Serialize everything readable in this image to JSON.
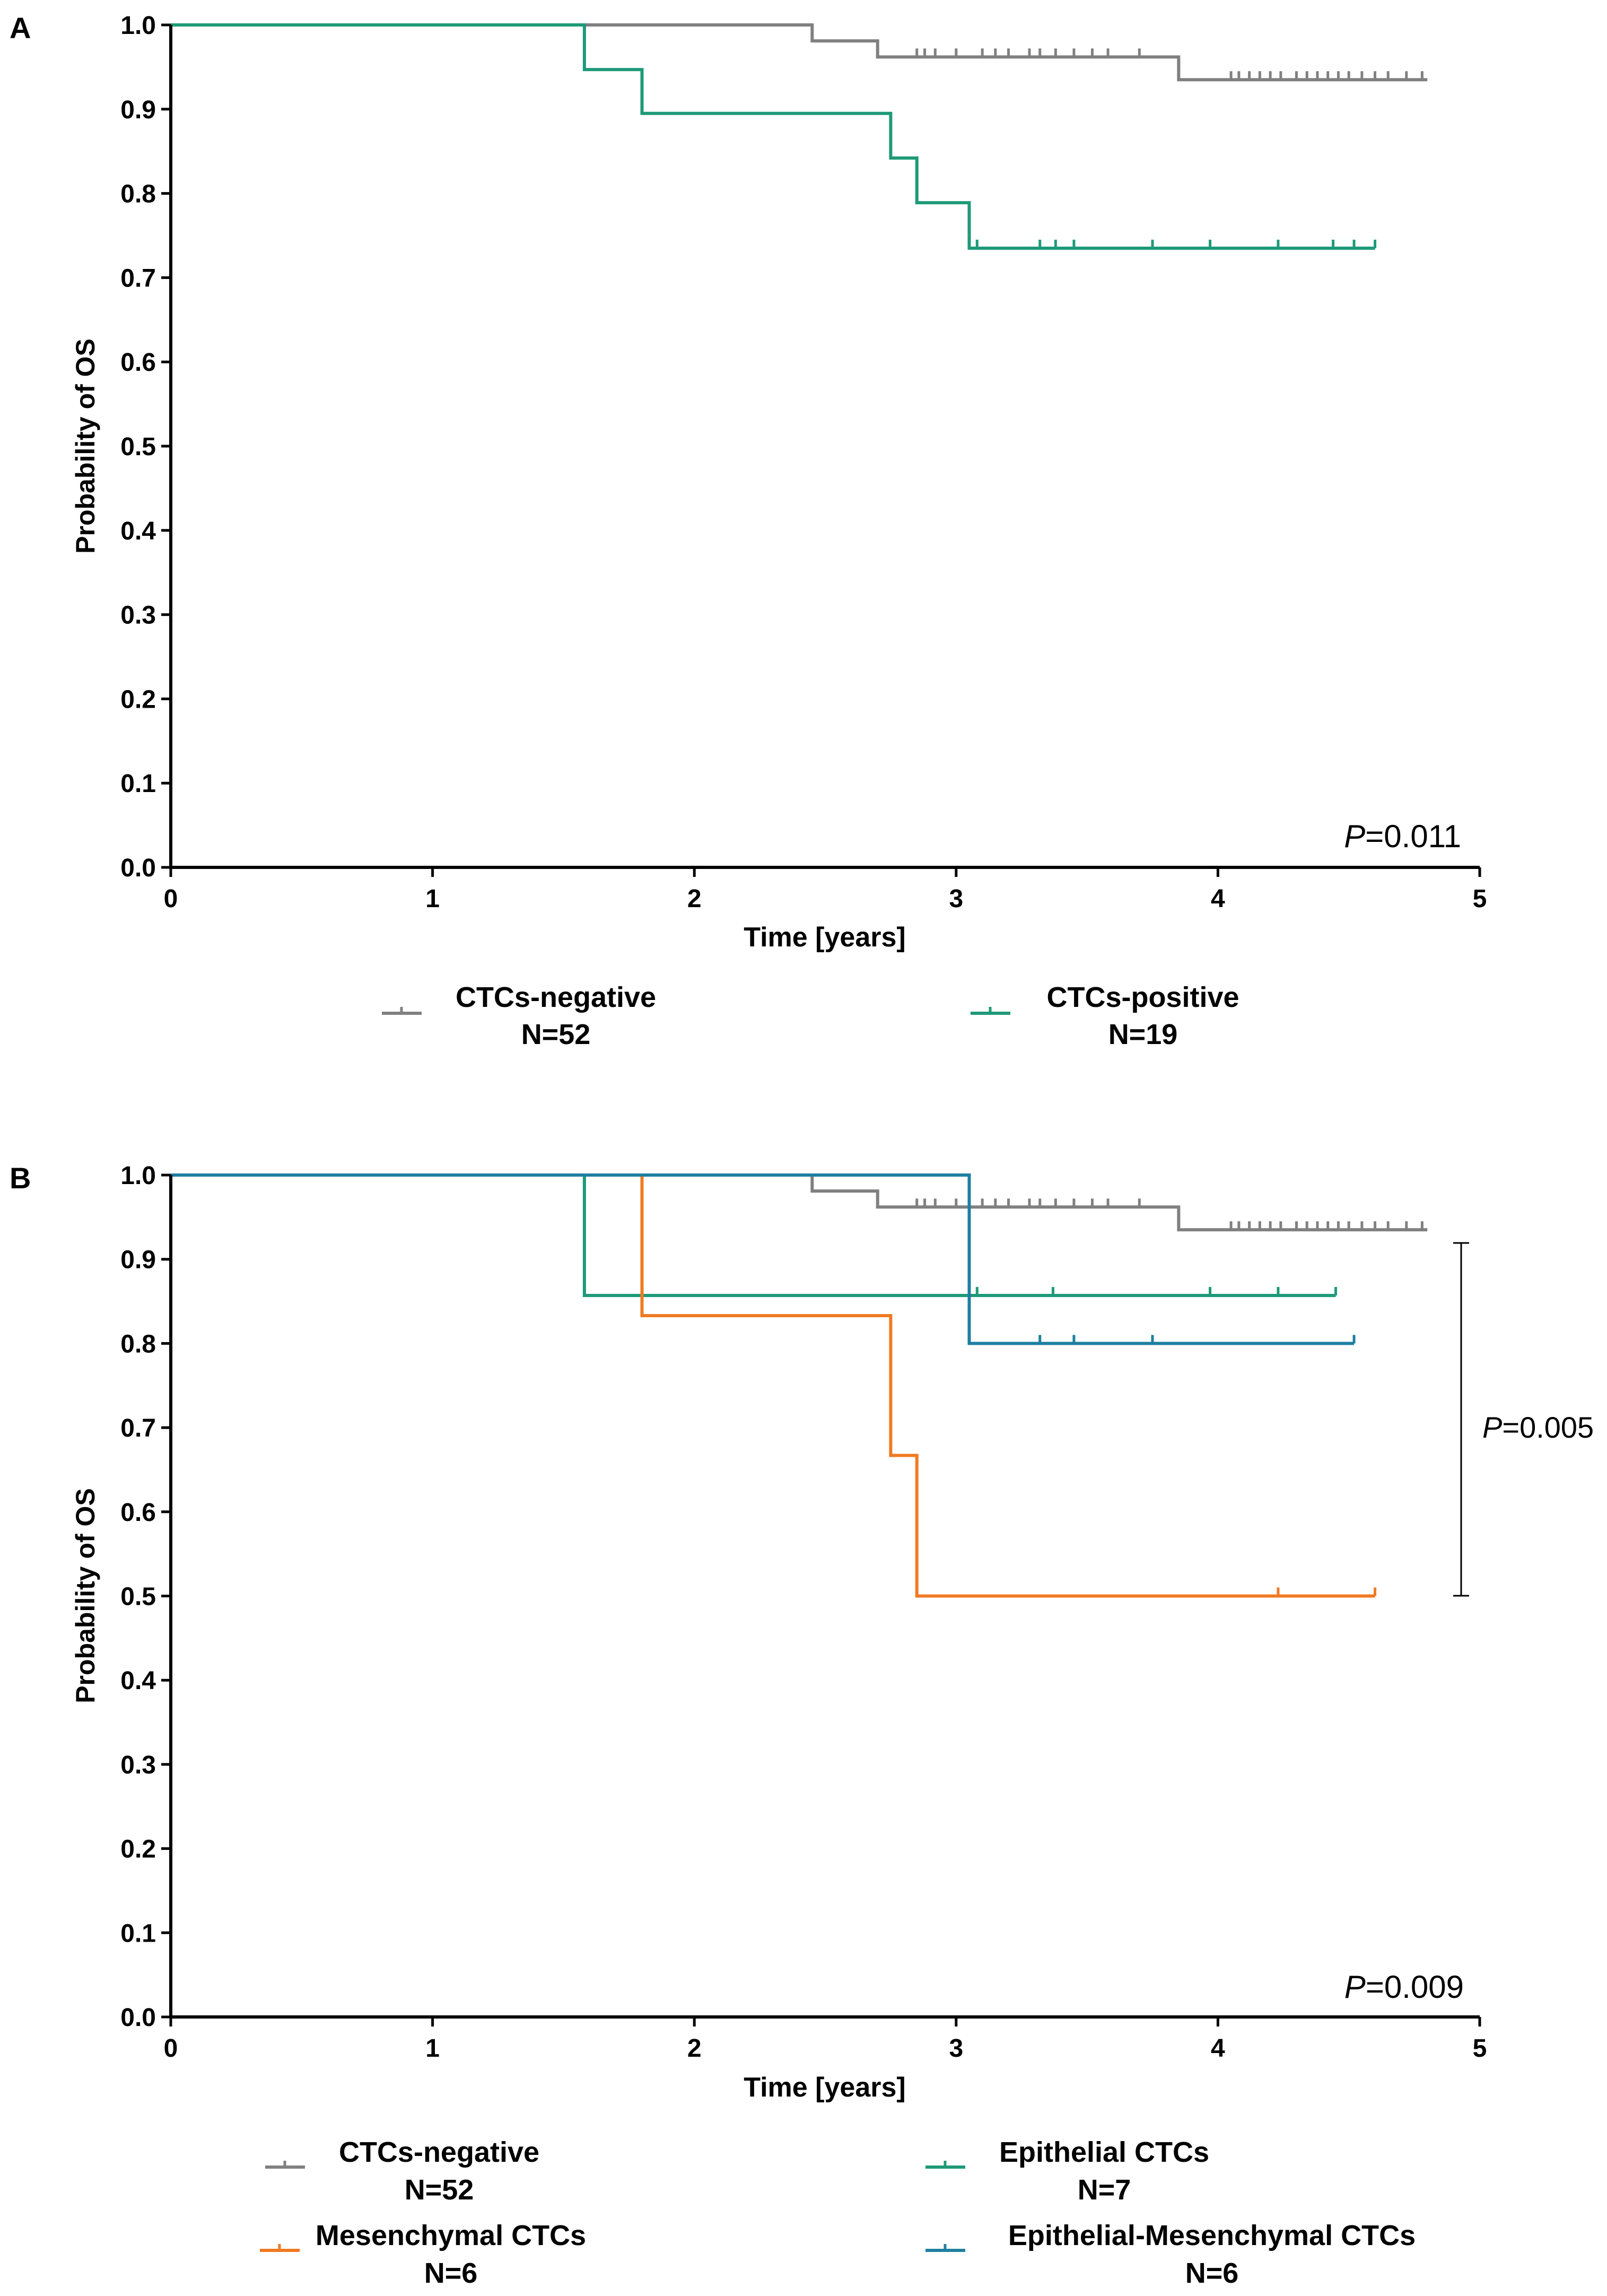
{
  "colors": {
    "negative": "#808080",
    "positive": "#1e9a78",
    "mesenchymal": "#f07a22",
    "epithelial": "#1e9a78",
    "epi_mes": "#1f7fa0",
    "axis": "#000000"
  },
  "chart_data": [
    {
      "panel_label": "A",
      "type": "line",
      "subtype": "kaplan-meier",
      "title": "",
      "xlabel": "Time [years]",
      "ylabel": "Probability of OS",
      "xlim": [
        0,
        5
      ],
      "ylim": [
        0,
        1.0
      ],
      "x_ticks": [
        "0",
        "1",
        "2",
        "3",
        "4",
        "5"
      ],
      "y_ticks": [
        "0.0",
        "0.1",
        "0.2",
        "0.3",
        "0.4",
        "0.5",
        "0.6",
        "0.7",
        "0.8",
        "0.9",
        "1.0"
      ],
      "pvalue": {
        "prefix": "P",
        "value": "=0.011"
      },
      "series": [
        {
          "name": "CTCs-negative",
          "n_label": "N=52",
          "color_key": "negative",
          "steps": [
            [
              0,
              1.0
            ],
            [
              2.45,
              0.981
            ],
            [
              2.7,
              0.962
            ],
            [
              3.85,
              0.935
            ]
          ],
          "x_end": 4.8,
          "censor_x": [
            2.85,
            2.88,
            2.92,
            3.0,
            3.1,
            3.15,
            3.2,
            3.28,
            3.32,
            3.38,
            3.45,
            3.52,
            3.58,
            3.7,
            4.05,
            4.08,
            4.12,
            4.16,
            4.2,
            4.24,
            4.3,
            4.34,
            4.38,
            4.42,
            4.46,
            4.5,
            4.55,
            4.6,
            4.65,
            4.72,
            4.78
          ]
        },
        {
          "name": "CTCs-positive",
          "n_label": "N=19",
          "color_key": "positive",
          "steps": [
            [
              0,
              1.0
            ],
            [
              1.58,
              0.947
            ],
            [
              1.8,
              0.895
            ],
            [
              2.75,
              0.842
            ],
            [
              2.85,
              0.789
            ],
            [
              3.05,
              0.735
            ]
          ],
          "x_end": 4.6,
          "censor_x": [
            3.05,
            3.08,
            3.32,
            3.38,
            3.45,
            3.75,
            3.97,
            4.23,
            4.44,
            4.52,
            4.6
          ]
        }
      ],
      "legend": {
        "position": "bottom"
      }
    },
    {
      "panel_label": "B",
      "type": "line",
      "subtype": "kaplan-meier",
      "title": "",
      "xlabel": "Time [years]",
      "ylabel": "Probability of OS",
      "xlim": [
        0,
        5
      ],
      "ylim": [
        0,
        1.0
      ],
      "x_ticks": [
        "0",
        "1",
        "2",
        "3",
        "4",
        "5"
      ],
      "y_ticks": [
        "0.0",
        "0.1",
        "0.2",
        "0.3",
        "0.4",
        "0.5",
        "0.6",
        "0.7",
        "0.8",
        "0.9",
        "1.0"
      ],
      "pvalue": {
        "prefix": "P",
        "value": "=0.009"
      },
      "bracket": {
        "y_top": 0.92,
        "y_bottom": 0.5,
        "x": 4.93,
        "label_prefix": "P",
        "label_value": "=0.005"
      },
      "series": [
        {
          "name": "CTCs-negative",
          "n_label": "N=52",
          "color_key": "negative",
          "steps": [
            [
              0,
              1.0
            ],
            [
              2.45,
              0.981
            ],
            [
              2.7,
              0.962
            ],
            [
              3.85,
              0.935
            ]
          ],
          "x_end": 4.8,
          "censor_x": [
            2.85,
            2.88,
            2.92,
            3.0,
            3.1,
            3.15,
            3.2,
            3.28,
            3.32,
            3.38,
            3.45,
            3.52,
            3.58,
            3.7,
            4.05,
            4.08,
            4.12,
            4.16,
            4.2,
            4.24,
            4.3,
            4.34,
            4.38,
            4.42,
            4.46,
            4.5,
            4.55,
            4.6,
            4.65,
            4.72,
            4.78
          ]
        },
        {
          "name": "Epithelial CTCs",
          "n_label": "N=7",
          "color_key": "epithelial",
          "steps": [
            [
              0,
              1.0
            ],
            [
              1.58,
              0.857
            ]
          ],
          "x_end": 4.45,
          "censor_x": [
            3.08,
            3.37,
            3.97,
            4.23,
            4.45
          ]
        },
        {
          "name": "Mesenchymal CTCs",
          "n_label": "N=6",
          "color_key": "mesenchymal",
          "steps": [
            [
              0,
              1.0
            ],
            [
              1.8,
              0.833
            ],
            [
              2.75,
              0.667
            ],
            [
              2.85,
              0.5
            ]
          ],
          "x_end": 4.6,
          "censor_x": [
            4.23,
            4.6
          ]
        },
        {
          "name": "Epithelial-Mesenchymal CTCs",
          "n_label": "N=6",
          "color_key": "epi_mes",
          "steps": [
            [
              0,
              1.0
            ],
            [
              3.05,
              0.8
            ]
          ],
          "x_end": 4.52,
          "censor_x": [
            3.05,
            3.32,
            3.45,
            3.75,
            4.52
          ]
        }
      ],
      "legend": {
        "position": "bottom"
      }
    }
  ]
}
